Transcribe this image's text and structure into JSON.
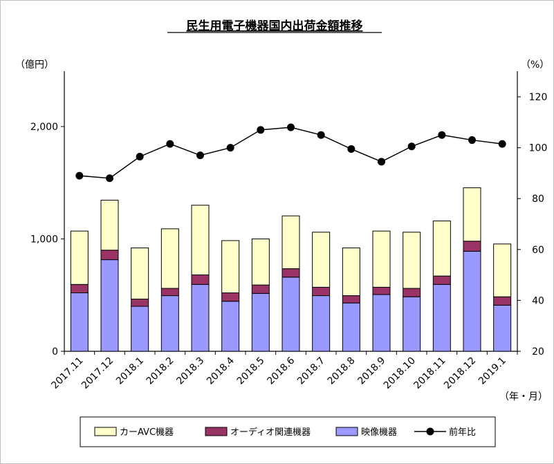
{
  "chart_data": {
    "type": "bar",
    "title": "民生用電子機器国内出荷金額推移",
    "left_axis_unit": "（億円）",
    "right_axis_unit": "（%）",
    "x_unit": "（年・月）",
    "categories": [
      "2017.11",
      "2017.12",
      "2018.1",
      "2018.2",
      "2018.3",
      "2018.4",
      "2018.5",
      "2018.6",
      "2018.7",
      "2018.8",
      "2018.9",
      "2018.10",
      "2018.11",
      "2018.12",
      "2019.1"
    ],
    "left_axis": {
      "min": 0,
      "max": 2000,
      "ticks": [
        0,
        1000,
        2000
      ],
      "tick_labels": [
        "0",
        "1,000",
        "2,000"
      ]
    },
    "right_axis": {
      "min": 20,
      "max": 120,
      "ticks": [
        20,
        40,
        60,
        80,
        100,
        120
      ],
      "tick_labels": [
        "20",
        "40",
        "60",
        "80",
        "100",
        "120"
      ]
    },
    "series": [
      {
        "name": "映像機器",
        "kind": "stacked-bar",
        "color": "#9999ff",
        "values": [
          520,
          815,
          400,
          495,
          595,
          445,
          515,
          660,
          495,
          430,
          505,
          485,
          595,
          890,
          410
        ]
      },
      {
        "name": "オーディオ関連機器",
        "kind": "stacked-bar",
        "color": "#993366",
        "values": [
          75,
          85,
          65,
          65,
          85,
          75,
          75,
          75,
          75,
          65,
          65,
          75,
          75,
          90,
          75
        ]
      },
      {
        "name": "カーAVC機器",
        "kind": "stacked-bar",
        "color": "#ffffcc",
        "values": [
          475,
          445,
          455,
          530,
          620,
          465,
          410,
          470,
          490,
          425,
          500,
          500,
          490,
          475,
          470
        ]
      },
      {
        "name": "前年比",
        "kind": "line",
        "axis": "right",
        "color": "#000000",
        "values": [
          89,
          88,
          96.5,
          101.5,
          97,
          100,
          107,
          108,
          105,
          99.5,
          94.5,
          100.5,
          105,
          103,
          101.5
        ]
      }
    ],
    "legend": {
      "position": "bottom",
      "items": [
        {
          "label": "カーAVC機器",
          "color": "#ffffcc",
          "kind": "box"
        },
        {
          "label": "オーディオ関連機器",
          "color": "#993366",
          "kind": "box"
        },
        {
          "label": "映像機器",
          "color": "#9999ff",
          "kind": "box"
        },
        {
          "label": "前年比",
          "color": "#000000",
          "kind": "line-marker"
        }
      ]
    },
    "grid": false
  }
}
